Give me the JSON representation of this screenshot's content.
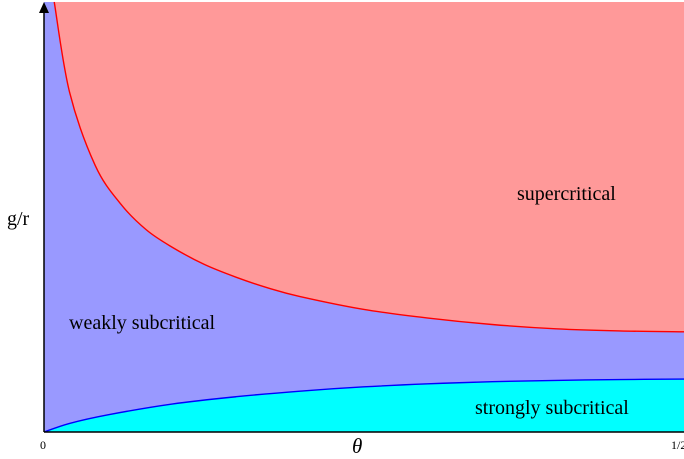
{
  "chart_data": {
    "type": "area",
    "xlabel": "θ",
    "ylabel": "g/r",
    "x_ticks": [
      "0",
      "1/2"
    ],
    "xlim": [
      0,
      0.5
    ],
    "grid": false,
    "legend": "none",
    "regions": [
      {
        "name": "supercritical",
        "color": "#ff9999",
        "between": [
          "upper_boundary",
          "top"
        ]
      },
      {
        "name": "weakly subcritical",
        "color": "#9999ff",
        "between": [
          "lower_boundary",
          "upper_boundary"
        ]
      },
      {
        "name": "strongly subcritical",
        "color": "#00ffff",
        "between": [
          "bottom",
          "lower_boundary"
        ]
      }
    ],
    "boundaries": [
      {
        "name": "upper_boundary",
        "color": "#ff0000",
        "x": [
          0.008,
          0.02,
          0.04,
          0.06,
          0.08,
          0.1,
          0.125,
          0.15,
          0.175,
          0.2,
          0.25,
          0.3,
          0.35,
          0.4,
          0.45,
          0.5
        ],
        "y": [
          1.0,
          0.79,
          0.62,
          0.53,
          0.47,
          0.43,
          0.39,
          0.36,
          0.335,
          0.315,
          0.285,
          0.265,
          0.25,
          0.24,
          0.235,
          0.233
        ]
      },
      {
        "name": "lower_boundary",
        "color": "#0000ff",
        "x": [
          0.0,
          0.02,
          0.05,
          0.1,
          0.15,
          0.2,
          0.25,
          0.3,
          0.35,
          0.4,
          0.45,
          0.5
        ],
        "y": [
          0.0,
          0.02,
          0.04,
          0.065,
          0.082,
          0.095,
          0.105,
          0.112,
          0.117,
          0.12,
          0.122,
          0.123
        ]
      }
    ],
    "ylim": [
      0,
      1
    ]
  }
}
